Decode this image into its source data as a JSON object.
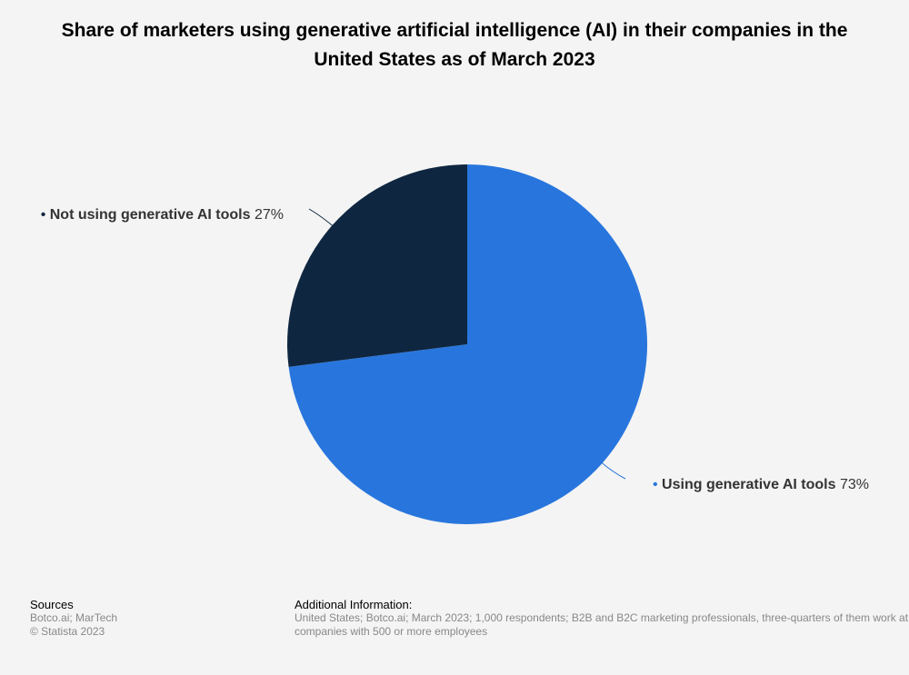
{
  "chart_data": {
    "type": "pie",
    "title": "Share of marketers using generative artificial intelligence (AI) in their companies in the United States as of March 2023",
    "slices": [
      {
        "label": "Using generative AI tools",
        "value": 73,
        "value_label": "73%",
        "color": "#2876dd"
      },
      {
        "label": "Not using generative AI tools",
        "value": 27,
        "value_label": "27%",
        "color": "#0f2640"
      }
    ],
    "legend": "none"
  },
  "footer": {
    "sources_heading": "Sources",
    "sources_line1": "Botco.ai; MarTech",
    "sources_line2": "© Statista 2023",
    "additional_heading": "Additional Information:",
    "additional_text": "United States; Botco.ai; March 2023; 1,000 respondents; B2B and B2C marketing professionals, three-quarters of them work at companies with 500 or more employees"
  }
}
